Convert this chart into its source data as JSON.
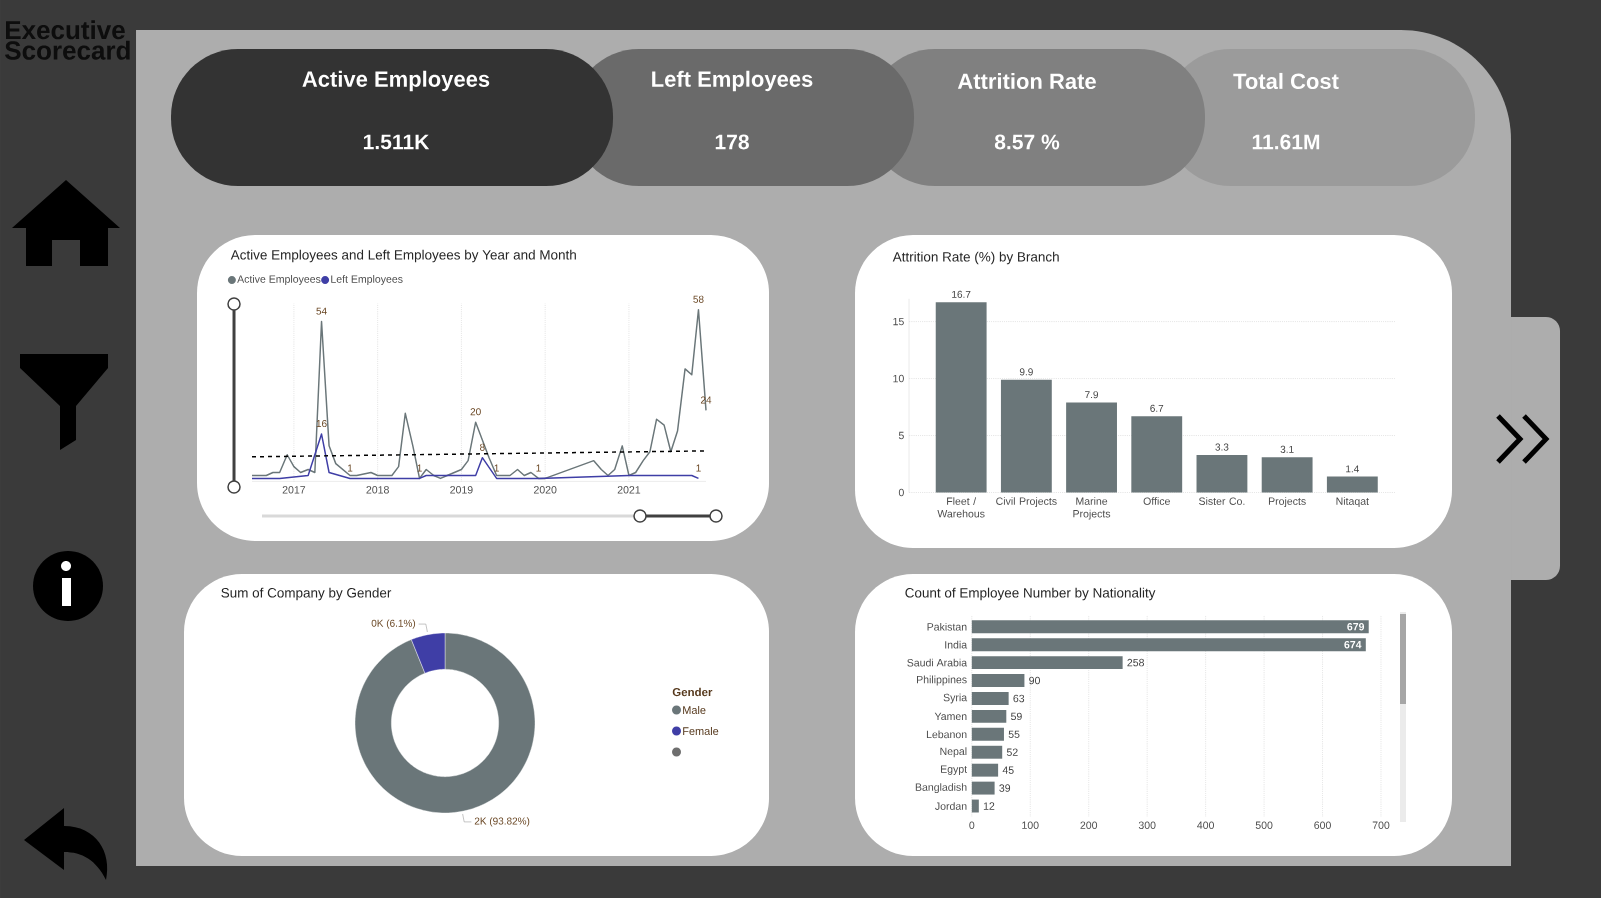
{
  "chart_data": [
    {
      "type": "other",
      "title": "Executive Scorecard",
      "annotations": [
        "Active Employees",
        "1.511K",
        "Left Employees",
        "178",
        "Attrition Rate",
        "8.57 %",
        "Total Cost",
        "11.61M"
      ]
    },
    {
      "type": "line",
      "title": "Active Employees and Left Employees by Year and Month",
      "legend": "top left",
      "grid": "x",
      "tick_labels": "x",
      "xlim": [
        "2016-07",
        "2021-12"
      ],
      "ylim": [
        0,
        60
      ],
      "xticks": [
        {
          "value": "2017-01",
          "label": "2017"
        },
        {
          "value": "2018-01",
          "label": "2018"
        },
        {
          "value": "2019-01",
          "label": "2019"
        },
        {
          "value": "2020-01",
          "label": "2020"
        },
        {
          "value": "2021-01",
          "label": "2021"
        }
      ],
      "series": [
        {
          "name": "Active Employees",
          "color": "#6a7679",
          "x": [
            "2016-07",
            "2016-09",
            "2016-10",
            "2016-11",
            "2016-12",
            "2017-01",
            "2017-02",
            "2017-03",
            "2017-04",
            "2017-05",
            "2017-06",
            "2017-07",
            "2017-09",
            "2017-10",
            "2017-12",
            "2018-01",
            "2018-03",
            "2018-04",
            "2018-05",
            "2018-06",
            "2018-07",
            "2018-08",
            "2018-09",
            "2018-10",
            "2018-11",
            "2019-01",
            "2019-02",
            "2019-03",
            "2019-04",
            "2019-05",
            "2019-06",
            "2019-08",
            "2019-09",
            "2019-10",
            "2019-11",
            "2019-12",
            "2020-01",
            "2020-08",
            "2020-09",
            "2020-10",
            "2020-11",
            "2020-12",
            "2021-01",
            "2021-02",
            "2021-03",
            "2021-04",
            "2021-05",
            "2021-06",
            "2021-07",
            "2021-08",
            "2021-09",
            "2021-10",
            "2021-11",
            "2021-12"
          ],
          "values": [
            2,
            2,
            3,
            3,
            9,
            5,
            3,
            4,
            3,
            54,
            12,
            6,
            2,
            2,
            3,
            2,
            2,
            5,
            23,
            12,
            1,
            4,
            2,
            1,
            2,
            4,
            7,
            20,
            14,
            8,
            2,
            2,
            4,
            2,
            3,
            1,
            1,
            7,
            4,
            2,
            4,
            12,
            2,
            3,
            7,
            10,
            21,
            19,
            10,
            17,
            38,
            36,
            58,
            24
          ],
          "value_labels": [
            null,
            null,
            null,
            null,
            null,
            null,
            null,
            null,
            null,
            "54",
            null,
            null,
            null,
            null,
            null,
            null,
            null,
            null,
            null,
            null,
            null,
            null,
            null,
            null,
            null,
            null,
            null,
            "20",
            null,
            null,
            null,
            null,
            null,
            null,
            null,
            null,
            null,
            null,
            null,
            null,
            null,
            null,
            null,
            null,
            null,
            null,
            null,
            null,
            null,
            null,
            null,
            null,
            "58",
            "24"
          ]
        },
        {
          "name": "Left Employees",
          "color": "#3f3ea6",
          "x": [
            "2016-07",
            "2016-11",
            "2017-03",
            "2017-05",
            "2017-06",
            "2017-09",
            "2018-06",
            "2018-07",
            "2018-08",
            "2019-03",
            "2019-04",
            "2019-06",
            "2019-12",
            "2021-01",
            "2021-10",
            "2021-11"
          ],
          "values": [
            1,
            1,
            2,
            16,
            3,
            1,
            1,
            1,
            2,
            2,
            8,
            1,
            1,
            2,
            2,
            1
          ],
          "value_labels": [
            null,
            null,
            null,
            "16",
            null,
            "1",
            null,
            "1",
            null,
            null,
            "8",
            "1",
            "1",
            null,
            null,
            "1"
          ]
        },
        {
          "type": "line",
          "color": "#000000",
          "line_style": "dashed",
          "x": [
            "2016-07",
            "2021-12"
          ],
          "values": [
            8.3,
            10.3
          ]
        }
      ]
    },
    {
      "type": "bar",
      "title": "Attrition Rate (%) by Branch",
      "categories": [
        "Fleet / Warehous",
        "Civil Projects",
        "Marine Projects",
        "Office",
        "Sister Co.",
        "Projects",
        "Nitaqat"
      ],
      "values": [
        16.7,
        9.9,
        7.9,
        6.7,
        3.3,
        3.1,
        1.4
      ],
      "color": "#6a7679",
      "ylim": [
        0,
        17
      ],
      "yticks": [
        0,
        5,
        10,
        15
      ],
      "grid": "y",
      "data_labels": true
    },
    {
      "type": "donut",
      "title": "Sum of Company by Gender",
      "categories": [
        "Male",
        "Female",
        null
      ],
      "values": [
        93.82,
        6.1,
        null
      ],
      "colors": [
        "#6a7679",
        "#3f3ea6",
        "#6e6e6e"
      ],
      "value_labels": [
        "2K (93.82%)",
        "0K (6.1%)",
        null
      ],
      "legend_title": "Gender",
      "legend": "right"
    },
    {
      "type": "bar",
      "orientation": "horizontal",
      "title": "Count of Employee Number by Nationality",
      "categories": [
        "Pakistan",
        "India",
        "Saudi Arabia",
        "Philippines",
        "Syria",
        "Yamen",
        "Lebanon",
        "Nepal",
        "Egypt",
        "Bangladish",
        "Jordan"
      ],
      "values": [
        679,
        674,
        258,
        90,
        63,
        59,
        55,
        52,
        45,
        39,
        12
      ],
      "color": "#6a7679",
      "xlim": [
        0,
        700
      ],
      "xticks": [
        0,
        100,
        200,
        300,
        400,
        500,
        600,
        700
      ],
      "grid": "x",
      "data_labels": true
    }
  ]
}
